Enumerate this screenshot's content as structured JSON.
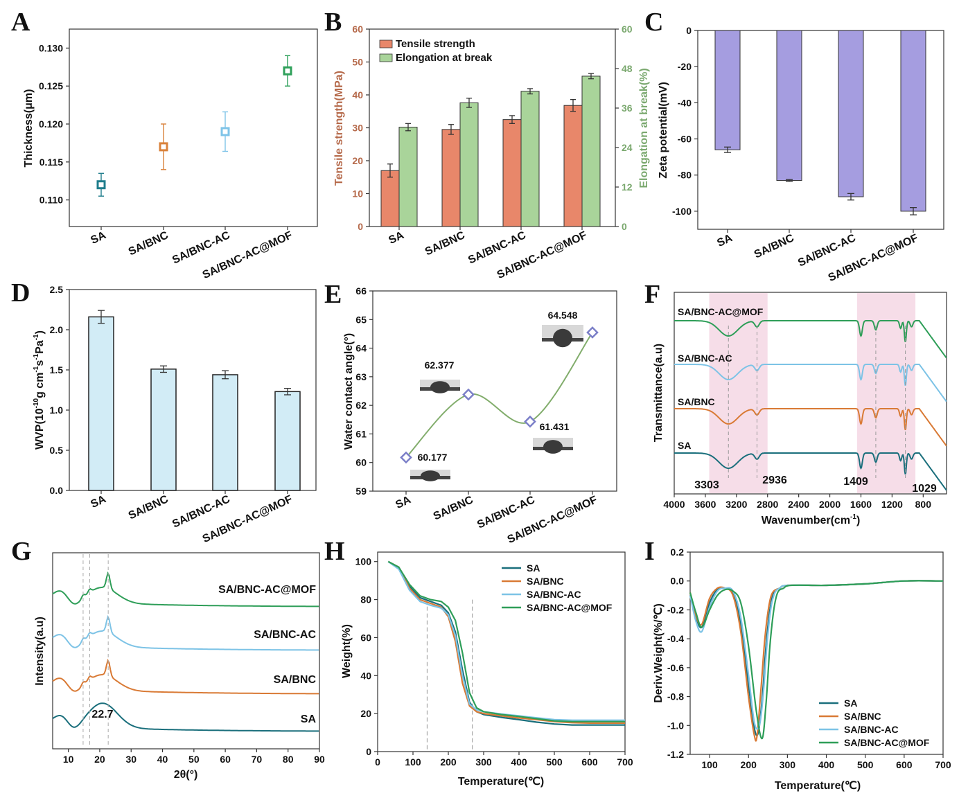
{
  "chart_data": [
    {
      "id": "A",
      "type": "scatter",
      "panel_letter": "A",
      "ylabel": "Thickness(μm)",
      "ylim": [
        0.1065,
        0.1325
      ],
      "yticks": [
        0.11,
        0.115,
        0.12,
        0.125,
        0.13
      ],
      "ytick_labels": [
        "0.110",
        "0.115",
        "0.120",
        "0.125",
        "0.130"
      ],
      "categories": [
        "SA",
        "SA/BNC",
        "SA/BNC-AC",
        "SA/BNC-AC@MOF"
      ],
      "values": [
        0.112,
        0.117,
        0.119,
        0.127
      ],
      "errors": [
        0.0015,
        0.003,
        0.0026,
        0.002
      ],
      "colors": [
        "#1f7d8c",
        "#d9823b",
        "#7fc4e8",
        "#2ea05a"
      ]
    },
    {
      "id": "B",
      "type": "bar",
      "panel_letter": "B",
      "ylabel": "Tensile strength(MPa)",
      "y2label": "Elongation at break(%)",
      "ylim": [
        0,
        60
      ],
      "y2lim": [
        0,
        60
      ],
      "yticks": [
        0,
        10,
        20,
        30,
        40,
        50,
        60
      ],
      "ytick_labels": [
        "0",
        "10",
        "20",
        "30",
        "40",
        "50",
        "60"
      ],
      "y2ticks": [
        0,
        12,
        24,
        36,
        48,
        60
      ],
      "y2tick_labels": [
        "0",
        "12",
        "24",
        "36",
        "48",
        "60"
      ],
      "categories": [
        "SA",
        "SA/BNC",
        "SA/BNC-AC",
        "SA/BNC-AC@MOF"
      ],
      "series": [
        {
          "name": "Tensile strength",
          "values": [
            17.0,
            29.5,
            32.5,
            36.8
          ],
          "errors": [
            2.0,
            1.5,
            1.2,
            1.8
          ],
          "color": "#e8876a",
          "axis": "left"
        },
        {
          "name": "Elongation at break",
          "values": [
            30.2,
            37.6,
            41.1,
            45.7
          ],
          "errors": [
            1.1,
            1.4,
            0.8,
            0.8
          ],
          "color": "#a9d49a",
          "axis": "right"
        }
      ],
      "left_color": "#b5694a",
      "right_color": "#7aa86e",
      "legend_position": "top-left"
    },
    {
      "id": "C",
      "type": "bar",
      "panel_letter": "C",
      "ylabel": "Zeta potential(mV)",
      "ylim": [
        -110,
        0
      ],
      "yticks": [
        0,
        -20,
        -40,
        -60,
        -80,
        -100
      ],
      "ytick_labels": [
        "0",
        "-20",
        "-40",
        "-60",
        "-80",
        "-100"
      ],
      "categories": [
        "SA",
        "SA/BNC",
        "SA/BNC-AC",
        "SA/BNC-AC@MOF"
      ],
      "values": [
        -66,
        -83,
        -92,
        -100
      ],
      "errors": [
        1.5,
        0.5,
        1.8,
        2.0
      ],
      "color": "#a59de0"
    },
    {
      "id": "D",
      "type": "bar",
      "panel_letter": "D",
      "ylabel_main": "WVP(10",
      "ylabel_sup1": "-10",
      "ylabel_mid1": "g cm",
      "ylabel_sup2": "-1",
      "ylabel_mid2": "s",
      "ylabel_sup3": "-1",
      "ylabel_mid3": "Pa",
      "ylabel_sup4": "-1",
      "ylabel_end": ")",
      "ylim": [
        0,
        2.5
      ],
      "yticks": [
        0.0,
        0.5,
        1.0,
        1.5,
        2.0,
        2.5
      ],
      "ytick_labels": [
        "0.0",
        "0.5",
        "1.0",
        "1.5",
        "2.0",
        "2.5"
      ],
      "categories": [
        "SA",
        "SA/BNC",
        "SA/BNC-AC",
        "SA/BNC-AC@MOF"
      ],
      "values": [
        2.16,
        1.51,
        1.44,
        1.23
      ],
      "errors": [
        0.08,
        0.04,
        0.05,
        0.04
      ],
      "color": "#d2ecf6"
    },
    {
      "id": "E",
      "type": "line",
      "panel_letter": "E",
      "ylabel": "Water contact angle(°)",
      "ylim": [
        59,
        66
      ],
      "yticks": [
        59,
        60,
        61,
        62,
        63,
        64,
        65,
        66
      ],
      "ytick_labels": [
        "59",
        "60",
        "61",
        "62",
        "63",
        "64",
        "65",
        "66"
      ],
      "categories": [
        "SA",
        "SA/BNC",
        "SA/BNC-AC",
        "SA/BNC-AC@MOF"
      ],
      "values": [
        60.177,
        62.377,
        61.431,
        64.548
      ],
      "value_labels": [
        "60.177",
        "62.377",
        "61.431",
        "64.548"
      ],
      "line_color": "#82ad6c",
      "marker_color": "#7b7fc8"
    },
    {
      "id": "F",
      "type": "line",
      "panel_letter": "F",
      "xlabel_main": "Wavenumber(cm",
      "xlabel_sup": "-1",
      "xlabel_end": ")",
      "ylabel": "Transmittance(a.u)",
      "xlim": [
        4000,
        500
      ],
      "xticks": [
        4000,
        3600,
        3200,
        2800,
        2400,
        2000,
        1600,
        1200,
        800
      ],
      "xtick_labels": [
        "4000",
        "3600",
        "3200",
        "2800",
        "2400",
        "2000",
        "1600",
        "1200",
        "800"
      ],
      "series": [
        {
          "name": "SA/BNC-AC@MOF",
          "color": "#2e9e58",
          "offset": 3
        },
        {
          "name": "SA/BNC-AC",
          "color": "#7dc3e6",
          "offset": 2
        },
        {
          "name": "SA/BNC",
          "color": "#d97a35",
          "offset": 1
        },
        {
          "name": "SA",
          "color": "#1a6f7c",
          "offset": 0
        }
      ],
      "shaded_regions": [
        [
          3550,
          2800
        ],
        [
          1650,
          900
        ]
      ],
      "peaks": [
        3303,
        2936,
        1409,
        1029
      ],
      "peak_labels": [
        "3303",
        "2936",
        "1409",
        "1029"
      ]
    },
    {
      "id": "G",
      "type": "line",
      "panel_letter": "G",
      "xlabel": "2θ(°)",
      "ylabel": "Intensity(a.u)",
      "xlim": [
        5,
        90
      ],
      "xticks": [
        10,
        20,
        30,
        40,
        50,
        60,
        70,
        80,
        90
      ],
      "xtick_labels": [
        "10",
        "20",
        "30",
        "40",
        "50",
        "60",
        "70",
        "80",
        "90"
      ],
      "series": [
        {
          "name": "SA/BNC-AC@MOF",
          "color": "#2e9e58",
          "offset": 3
        },
        {
          "name": "SA/BNC-AC",
          "color": "#7dc3e6",
          "offset": 2
        },
        {
          "name": "SA/BNC",
          "color": "#d97a35",
          "offset": 1
        },
        {
          "name": "SA",
          "color": "#1a6f7c",
          "offset": 0
        }
      ],
      "annotation": "22.7",
      "guide_lines": [
        14.7,
        16.8,
        22.7
      ]
    },
    {
      "id": "H",
      "type": "line",
      "panel_letter": "H",
      "xlabel": "Temperature(℃)",
      "ylabel": "Weight(%)",
      "xlim": [
        0,
        700
      ],
      "ylim": [
        0,
        105
      ],
      "xticks": [
        0,
        100,
        200,
        300,
        400,
        500,
        600,
        700
      ],
      "xtick_labels": [
        "0",
        "100",
        "200",
        "300",
        "400",
        "500",
        "600",
        "700"
      ],
      "yticks": [
        0,
        20,
        40,
        60,
        80,
        100
      ],
      "ytick_labels": [
        "0",
        "20",
        "40",
        "60",
        "80",
        "100"
      ],
      "guide_lines": [
        140,
        268
      ],
      "series": [
        {
          "name": "SA",
          "color": "#1a6f7c",
          "x": [
            30,
            60,
            90,
            120,
            150,
            180,
            200,
            220,
            240,
            260,
            280,
            300,
            350,
            400,
            450,
            500,
            550,
            600,
            700
          ],
          "y": [
            100,
            97,
            87,
            81,
            79,
            77,
            73,
            63,
            43,
            26,
            21,
            19.5,
            18,
            16.8,
            15.5,
            14.5,
            14,
            14,
            14
          ]
        },
        {
          "name": "SA/BNC",
          "color": "#d97a35",
          "x": [
            30,
            60,
            90,
            120,
            150,
            180,
            200,
            220,
            240,
            260,
            280,
            300,
            350,
            400,
            450,
            500,
            550,
            600,
            700
          ],
          "y": [
            100,
            97,
            86,
            80,
            78,
            76,
            71,
            58,
            36,
            24,
            21,
            20,
            18.8,
            17.7,
            16.8,
            15.8,
            15.2,
            15,
            15
          ]
        },
        {
          "name": "SA/BNC-AC",
          "color": "#7dc3e6",
          "x": [
            30,
            60,
            90,
            120,
            150,
            180,
            200,
            220,
            240,
            260,
            280,
            300,
            350,
            400,
            450,
            500,
            550,
            600,
            700
          ],
          "y": [
            100,
            96,
            85,
            79,
            77,
            75.5,
            72,
            61,
            40,
            25,
            22,
            21,
            19.8,
            18.8,
            17.8,
            16.8,
            16.5,
            16.5,
            16.5
          ]
        },
        {
          "name": "SA/BNC-AC@MOF",
          "color": "#2e9e58",
          "x": [
            30,
            60,
            90,
            120,
            150,
            180,
            200,
            220,
            240,
            260,
            280,
            300,
            350,
            400,
            450,
            500,
            550,
            600,
            700
          ],
          "y": [
            100,
            97,
            88,
            82,
            80,
            79,
            76,
            69,
            52,
            31,
            23,
            21,
            19.5,
            18.5,
            17.3,
            16.2,
            15.8,
            15.8,
            15.8
          ]
        }
      ],
      "legend_position": "top-right"
    },
    {
      "id": "I",
      "type": "line",
      "panel_letter": "I",
      "xlabel": "Temperature(℃)",
      "ylabel": "Deriv.Weight(%/℃)",
      "xlim": [
        50,
        700
      ],
      "ylim": [
        -1.2,
        0.2
      ],
      "xticks": [
        100,
        200,
        300,
        400,
        500,
        600,
        700
      ],
      "xtick_labels": [
        "100",
        "200",
        "300",
        "400",
        "500",
        "600",
        "700"
      ],
      "yticks": [
        0.2,
        0.0,
        -0.2,
        -0.4,
        -0.6,
        -0.8,
        -1.0,
        -1.2
      ],
      "ytick_labels": [
        "0.2",
        "0.0",
        "-0.2",
        "-0.4",
        "-0.6",
        "-0.8",
        "-1.0",
        "-1.2"
      ],
      "series": [
        {
          "name": "SA",
          "color": "#1a6f7c",
          "x": [
            50,
            65,
            80,
            100,
            120,
            140,
            160,
            180,
            200,
            215,
            225,
            235,
            245,
            255,
            265,
            280,
            300,
            400,
            500,
            600,
            700
          ],
          "y": [
            -0.1,
            -0.25,
            -0.32,
            -0.15,
            -0.06,
            -0.05,
            -0.08,
            -0.3,
            -0.72,
            -1.02,
            -1.05,
            -0.82,
            -0.45,
            -0.2,
            -0.08,
            -0.05,
            -0.03,
            -0.03,
            -0.02,
            0,
            0
          ]
        },
        {
          "name": "SA/BNC",
          "color": "#d97a35",
          "x": [
            50,
            65,
            80,
            100,
            120,
            140,
            160,
            180,
            200,
            215,
            222,
            232,
            242,
            252,
            262,
            280,
            300,
            400,
            500,
            600,
            700
          ],
          "y": [
            -0.08,
            -0.24,
            -0.3,
            -0.12,
            -0.05,
            -0.05,
            -0.1,
            -0.35,
            -0.8,
            -1.07,
            -1.07,
            -0.75,
            -0.4,
            -0.18,
            -0.08,
            -0.05,
            -0.03,
            -0.03,
            -0.02,
            0,
            0
          ]
        },
        {
          "name": "SA/BNC-AC",
          "color": "#7dc3e6",
          "x": [
            50,
            65,
            80,
            100,
            120,
            140,
            160,
            180,
            200,
            215,
            228,
            238,
            248,
            258,
            268,
            280,
            300,
            400,
            500,
            600,
            700
          ],
          "y": [
            -0.1,
            -0.28,
            -0.35,
            -0.18,
            -0.07,
            -0.05,
            -0.07,
            -0.25,
            -0.65,
            -0.98,
            -1.0,
            -0.78,
            -0.42,
            -0.18,
            -0.08,
            -0.05,
            -0.03,
            -0.03,
            -0.02,
            0,
            0
          ]
        },
        {
          "name": "SA/BNC-AC@MOF",
          "color": "#2e9e58",
          "x": [
            50,
            65,
            80,
            100,
            120,
            140,
            160,
            180,
            200,
            220,
            235,
            245,
            255,
            265,
            275,
            290,
            310,
            400,
            500,
            600,
            700
          ],
          "y": [
            -0.08,
            -0.22,
            -0.32,
            -0.2,
            -0.1,
            -0.06,
            -0.07,
            -0.15,
            -0.45,
            -0.9,
            -1.09,
            -0.85,
            -0.45,
            -0.2,
            -0.08,
            -0.05,
            -0.03,
            -0.03,
            -0.02,
            0,
            0
          ]
        }
      ],
      "legend_position": "bottom-right"
    }
  ]
}
